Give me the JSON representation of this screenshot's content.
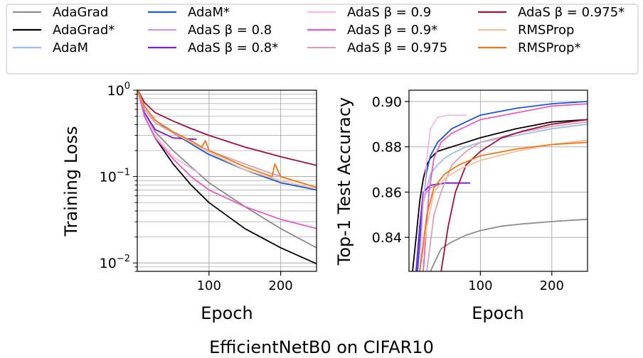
{
  "figure": {
    "caption": "EfficientNetB0 on CIFAR10"
  },
  "legend": {
    "placement": "top",
    "entries": [
      {
        "label": "AdaGrad",
        "color": "#8c8c8c"
      },
      {
        "label": "AdaGrad*",
        "color": "#000000"
      },
      {
        "label": "AdaM",
        "color": "#9dbcf2"
      },
      {
        "label": "AdaM*",
        "color": "#1a56e0"
      },
      {
        "label": "AdaS β = 0.8",
        "color": "#c79be8"
      },
      {
        "label": "AdaS β = 0.8*",
        "color": "#7a1fe0"
      },
      {
        "label": "AdaS β = 0.9",
        "color": "#f5b8e0"
      },
      {
        "label": "AdaS β = 0.9*",
        "color": "#e85cc0"
      },
      {
        "label": "AdaS β = 0.975",
        "color": "#d9a0b4"
      },
      {
        "label": "AdaS β = 0.975*",
        "color": "#a0103a"
      },
      {
        "label": "RMSProp",
        "color": "#f5c09a"
      },
      {
        "label": "RMSProp*",
        "color": "#f07818"
      }
    ]
  },
  "chart_data": [
    {
      "type": "line",
      "ylabel": "Training Loss",
      "xlabel": "Epoch",
      "yscale": "log",
      "xlim": [
        0,
        250
      ],
      "ylim": [
        0.008,
        1.0
      ],
      "xticks": [
        100,
        200
      ],
      "yticks": [
        {
          "value": 1.0,
          "label": "10^0"
        },
        {
          "value": 0.1,
          "label": "10^-1"
        },
        {
          "value": 0.01,
          "label": "10^-2"
        }
      ],
      "grid": true,
      "series": [
        {
          "name": "AdaGrad",
          "x": [
            1,
            10,
            25,
            50,
            75,
            100,
            150,
            200,
            250
          ],
          "y": [
            1.0,
            0.55,
            0.33,
            0.2,
            0.13,
            0.085,
            0.045,
            0.025,
            0.015
          ]
        },
        {
          "name": "AdaGrad*",
          "x": [
            1,
            10,
            25,
            50,
            75,
            100,
            150,
            200,
            250
          ],
          "y": [
            1.0,
            0.5,
            0.28,
            0.14,
            0.08,
            0.05,
            0.025,
            0.015,
            0.0098
          ]
        },
        {
          "name": "AdaM",
          "x": [
            1,
            10,
            25,
            50,
            75,
            100,
            150,
            200,
            250
          ],
          "y": [
            1.0,
            0.65,
            0.45,
            0.32,
            0.24,
            0.18,
            0.12,
            0.085,
            0.07
          ]
        },
        {
          "name": "AdaM*",
          "x": [
            1,
            10,
            25,
            50,
            75,
            100,
            150,
            200,
            250
          ],
          "y": [
            1.0,
            0.65,
            0.45,
            0.32,
            0.24,
            0.18,
            0.12,
            0.085,
            0.07
          ]
        },
        {
          "name": "AdaS β = 0.8",
          "x": [
            1,
            10,
            25,
            50,
            82
          ],
          "y": [
            1.0,
            0.55,
            0.35,
            0.28,
            0.27
          ]
        },
        {
          "name": "AdaS β = 0.8*",
          "x": [
            1,
            10,
            25,
            50,
            82
          ],
          "y": [
            1.0,
            0.55,
            0.35,
            0.28,
            0.27
          ]
        },
        {
          "name": "AdaS β = 0.9",
          "x": [
            1,
            10,
            25,
            50,
            85
          ],
          "y": [
            1.0,
            0.5,
            0.3,
            0.17,
            0.11
          ]
        },
        {
          "name": "AdaS β = 0.9*",
          "x": [
            1,
            10,
            25,
            50,
            75,
            100,
            150,
            200,
            250
          ],
          "y": [
            1.0,
            0.5,
            0.28,
            0.16,
            0.1,
            0.07,
            0.045,
            0.032,
            0.025
          ]
        },
        {
          "name": "AdaS β = 0.975",
          "x": [
            1,
            10,
            25,
            50,
            75,
            100,
            150,
            200,
            250
          ],
          "y": [
            1.0,
            0.6,
            0.42,
            0.32,
            0.25,
            0.2,
            0.14,
            0.1,
            0.075
          ]
        },
        {
          "name": "AdaS β = 0.975*",
          "x": [
            1,
            10,
            25,
            50,
            75,
            100,
            150,
            200,
            250
          ],
          "y": [
            1.0,
            0.72,
            0.55,
            0.44,
            0.36,
            0.3,
            0.22,
            0.17,
            0.135
          ]
        },
        {
          "name": "RMSProp",
          "x": [
            1,
            10,
            25,
            50,
            75,
            100,
            150,
            200,
            250
          ],
          "y": [
            1.0,
            0.65,
            0.45,
            0.33,
            0.25,
            0.19,
            0.12,
            0.09,
            0.072
          ]
        },
        {
          "name": "RMSProp*",
          "x": [
            1,
            10,
            25,
            50,
            75,
            90,
            95,
            100,
            150,
            188,
            192,
            200,
            250
          ],
          "y": [
            1.0,
            0.65,
            0.45,
            0.33,
            0.26,
            0.22,
            0.26,
            0.2,
            0.13,
            0.1,
            0.14,
            0.1,
            0.075
          ]
        }
      ]
    },
    {
      "type": "line",
      "ylabel": "Top-1 Test Accuracy",
      "xlabel": "Epoch",
      "yscale": "linear",
      "xlim": [
        0,
        250
      ],
      "ylim": [
        0.825,
        0.905
      ],
      "xticks": [
        100,
        200
      ],
      "yticks": [
        0.84,
        0.86,
        0.88,
        0.9
      ],
      "grid": true,
      "series": [
        {
          "name": "AdaGrad",
          "x": [
            30,
            45,
            60,
            80,
            100,
            130,
            160,
            200,
            250
          ],
          "y": [
            0.825,
            0.835,
            0.838,
            0.841,
            0.843,
            0.845,
            0.846,
            0.847,
            0.848
          ]
        },
        {
          "name": "AdaGrad*",
          "x": [
            5,
            10,
            15,
            20,
            25,
            30,
            40,
            50,
            60,
            80,
            100,
            150,
            200,
            250
          ],
          "y": [
            0.825,
            0.84,
            0.856,
            0.866,
            0.872,
            0.875,
            0.878,
            0.879,
            0.88,
            0.882,
            0.884,
            0.888,
            0.891,
            0.892
          ]
        },
        {
          "name": "AdaM",
          "x": [
            10,
            20,
            30,
            40,
            50,
            60,
            80,
            100,
            150,
            200,
            250
          ],
          "y": [
            0.825,
            0.855,
            0.868,
            0.872,
            0.875,
            0.877,
            0.88,
            0.882,
            0.885,
            0.888,
            0.89
          ]
        },
        {
          "name": "AdaM*",
          "x": [
            12,
            18,
            24,
            30,
            40,
            50,
            60,
            80,
            100,
            150,
            200,
            250
          ],
          "y": [
            0.825,
            0.85,
            0.868,
            0.876,
            0.882,
            0.885,
            0.888,
            0.891,
            0.894,
            0.897,
            0.899,
            0.9
          ]
        },
        {
          "name": "AdaS β = 0.8",
          "x": [
            10,
            15,
            20,
            30,
            50,
            85
          ],
          "y": [
            0.825,
            0.845,
            0.858,
            0.862,
            0.864,
            0.864
          ]
        },
        {
          "name": "AdaS β = 0.8*",
          "x": [
            10,
            15,
            20,
            30,
            50,
            85
          ],
          "y": [
            0.825,
            0.845,
            0.86,
            0.863,
            0.864,
            0.864
          ]
        },
        {
          "name": "AdaS β = 0.9",
          "x": [
            15,
            20,
            25,
            30,
            40,
            55,
            80
          ],
          "y": [
            0.825,
            0.855,
            0.875,
            0.888,
            0.893,
            0.894,
            0.894
          ]
        },
        {
          "name": "AdaS β = 0.9*",
          "x": [
            20,
            28,
            35,
            45,
            60,
            80,
            100,
            150,
            200,
            250
          ],
          "y": [
            0.825,
            0.86,
            0.875,
            0.882,
            0.886,
            0.889,
            0.892,
            0.895,
            0.898,
            0.899
          ]
        },
        {
          "name": "AdaS β = 0.975",
          "x": [
            25,
            35,
            45,
            60,
            80,
            100,
            150,
            200,
            250
          ],
          "y": [
            0.825,
            0.85,
            0.86,
            0.872,
            0.878,
            0.882,
            0.886,
            0.889,
            0.891
          ]
        },
        {
          "name": "AdaS β = 0.975*",
          "x": [
            45,
            55,
            65,
            80,
            100,
            130,
            160,
            200,
            250
          ],
          "y": [
            0.825,
            0.845,
            0.86,
            0.872,
            0.878,
            0.884,
            0.887,
            0.89,
            0.892
          ]
        },
        {
          "name": "RMSProp",
          "x": [
            15,
            25,
            35,
            50,
            70,
            100,
            150,
            200,
            250
          ],
          "y": [
            0.825,
            0.845,
            0.86,
            0.866,
            0.87,
            0.874,
            0.878,
            0.881,
            0.883
          ]
        },
        {
          "name": "RMSProp*",
          "x": [
            15,
            25,
            35,
            50,
            70,
            100,
            150,
            200,
            250
          ],
          "y": [
            0.825,
            0.85,
            0.862,
            0.868,
            0.872,
            0.876,
            0.879,
            0.881,
            0.882
          ]
        }
      ]
    }
  ]
}
